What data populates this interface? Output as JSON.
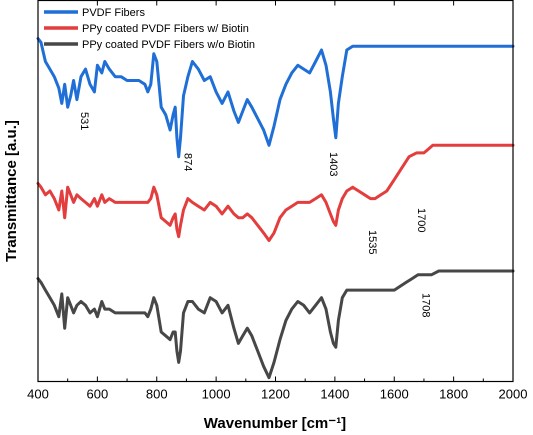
{
  "chart_data": {
    "type": "line",
    "title": "",
    "xlabel": "Wavenumber [cm⁻¹]",
    "ylabel": "Transmittance [a.u.]",
    "xlim": [
      400,
      2000
    ],
    "ylim": [
      0,
      100
    ],
    "xticks": [
      400,
      600,
      800,
      1000,
      1200,
      1400,
      1600,
      1800,
      2000
    ],
    "yticks": [],
    "grid": false,
    "legend_position": "top-left",
    "series": [
      {
        "name": "PVDF Fibers",
        "color": "#1f6fd6",
        "x": [
          400,
          410,
          425,
          440,
          455,
          470,
          480,
          490,
          500,
          510,
          520,
          531,
          545,
          560,
          575,
          590,
          600,
          615,
          625,
          640,
          660,
          680,
          700,
          720,
          740,
          760,
          770,
          780,
          790,
          800,
          815,
          830,
          845,
          855,
          862,
          868,
          874,
          880,
          890,
          905,
          920,
          940,
          960,
          980,
          1000,
          1020,
          1040,
          1060,
          1075,
          1090,
          1105,
          1120,
          1140,
          1160,
          1178,
          1195,
          1215,
          1235,
          1255,
          1275,
          1295,
          1315,
          1335,
          1355,
          1370,
          1385,
          1395,
          1403,
          1412,
          1425,
          1440,
          1460,
          1500,
          1600,
          1700,
          1800,
          1900,
          2000
        ],
        "y": [
          90,
          89,
          84,
          82,
          80,
          77,
          73,
          78,
          72,
          75,
          79,
          74,
          80,
          82,
          78,
          76,
          83,
          81,
          84,
          82,
          80,
          80,
          79,
          79,
          79,
          78,
          76,
          78,
          86,
          84,
          72,
          70,
          66,
          70,
          72,
          64,
          59,
          64,
          75,
          80,
          84,
          82,
          79,
          80,
          76,
          73,
          76,
          71,
          68,
          71,
          74,
          72,
          69,
          66,
          62,
          67,
          74,
          78,
          81,
          83,
          82,
          81,
          84,
          87,
          83,
          76,
          69,
          64,
          73,
          80,
          87,
          88,
          88,
          88,
          88,
          88,
          88,
          88
        ]
      },
      {
        "name": "PPy coated PVDF Fibers w/ Biotin",
        "color": "#e33d3d",
        "x": [
          400,
          410,
          425,
          440,
          455,
          470,
          480,
          490,
          500,
          510,
          520,
          531,
          545,
          560,
          575,
          590,
          600,
          615,
          625,
          640,
          660,
          680,
          700,
          720,
          740,
          760,
          770,
          780,
          790,
          800,
          815,
          830,
          845,
          855,
          862,
          868,
          874,
          880,
          890,
          905,
          920,
          940,
          960,
          980,
          1000,
          1020,
          1040,
          1060,
          1075,
          1090,
          1105,
          1120,
          1140,
          1160,
          1178,
          1195,
          1215,
          1235,
          1255,
          1275,
          1295,
          1315,
          1335,
          1355,
          1370,
          1385,
          1395,
          1403,
          1412,
          1425,
          1440,
          1460,
          1480,
          1500,
          1520,
          1535,
          1555,
          1575,
          1600,
          1625,
          1650,
          1675,
          1700,
          1715,
          1730,
          1750,
          1800,
          1900,
          2000
        ],
        "y": [
          52,
          51,
          49,
          50,
          48,
          45,
          50,
          43,
          51,
          49,
          47,
          49,
          48,
          47,
          46,
          48,
          46,
          49,
          47,
          48,
          47,
          47,
          47,
          47,
          47,
          47,
          47,
          48,
          51,
          49,
          43,
          42,
          41,
          43,
          44,
          40,
          38,
          41,
          45,
          48,
          47,
          46,
          45,
          47,
          46,
          44,
          46,
          44,
          43,
          43,
          44,
          43,
          41,
          39,
          37,
          39,
          43,
          45,
          46,
          47,
          47,
          47,
          48,
          49,
          47,
          44,
          42,
          41,
          45,
          48,
          50,
          51,
          50,
          49,
          48,
          48,
          49,
          50,
          53,
          56,
          59,
          60,
          60,
          61,
          62,
          62,
          62,
          62,
          62
        ]
      },
      {
        "name": "PPy coated PVDF Fibers w/o Biotin",
        "color": "#474747",
        "x": [
          400,
          410,
          425,
          440,
          455,
          470,
          480,
          490,
          500,
          510,
          520,
          531,
          545,
          560,
          575,
          590,
          600,
          615,
          625,
          640,
          660,
          680,
          700,
          720,
          740,
          760,
          770,
          780,
          790,
          800,
          815,
          830,
          845,
          855,
          862,
          868,
          874,
          880,
          890,
          905,
          920,
          940,
          960,
          980,
          1000,
          1020,
          1040,
          1060,
          1075,
          1090,
          1105,
          1120,
          1140,
          1160,
          1178,
          1195,
          1215,
          1235,
          1255,
          1275,
          1295,
          1315,
          1335,
          1355,
          1370,
          1385,
          1395,
          1403,
          1412,
          1425,
          1440,
          1460,
          1500,
          1550,
          1600,
          1640,
          1660,
          1680,
          1708,
          1725,
          1750,
          1800,
          1900,
          2000
        ],
        "y": [
          27,
          26,
          24,
          22,
          20,
          17,
          23,
          14,
          22,
          20,
          18,
          20,
          21,
          20,
          18,
          19,
          17,
          21,
          19,
          19,
          18,
          18,
          18,
          18,
          18,
          18,
          17,
          19,
          22,
          20,
          13,
          12,
          11,
          13,
          13,
          8,
          5,
          8,
          18,
          21,
          21,
          19,
          18,
          22,
          21,
          18,
          20,
          14,
          10,
          12,
          14,
          12,
          8,
          4,
          1,
          5,
          11,
          16,
          19,
          21,
          20,
          18,
          20,
          22,
          19,
          13,
          10,
          9,
          16,
          22,
          24,
          24,
          24,
          24,
          24,
          26,
          27,
          28,
          28,
          28,
          29,
          29,
          29,
          29
        ]
      }
    ],
    "annotations": [
      {
        "text": "531",
        "x": 531,
        "series": 0,
        "vertical": true
      },
      {
        "text": "874",
        "x": 874,
        "series": 0,
        "vertical": true
      },
      {
        "text": "1403",
        "x": 1403,
        "series": 0,
        "vertical": true
      },
      {
        "text": "1535",
        "x": 1535,
        "series": 1,
        "vertical": true
      },
      {
        "text": "1700",
        "x": 1700,
        "series": 1,
        "vertical": true
      },
      {
        "text": "1708",
        "x": 1708,
        "series": 2,
        "vertical": true
      }
    ]
  }
}
